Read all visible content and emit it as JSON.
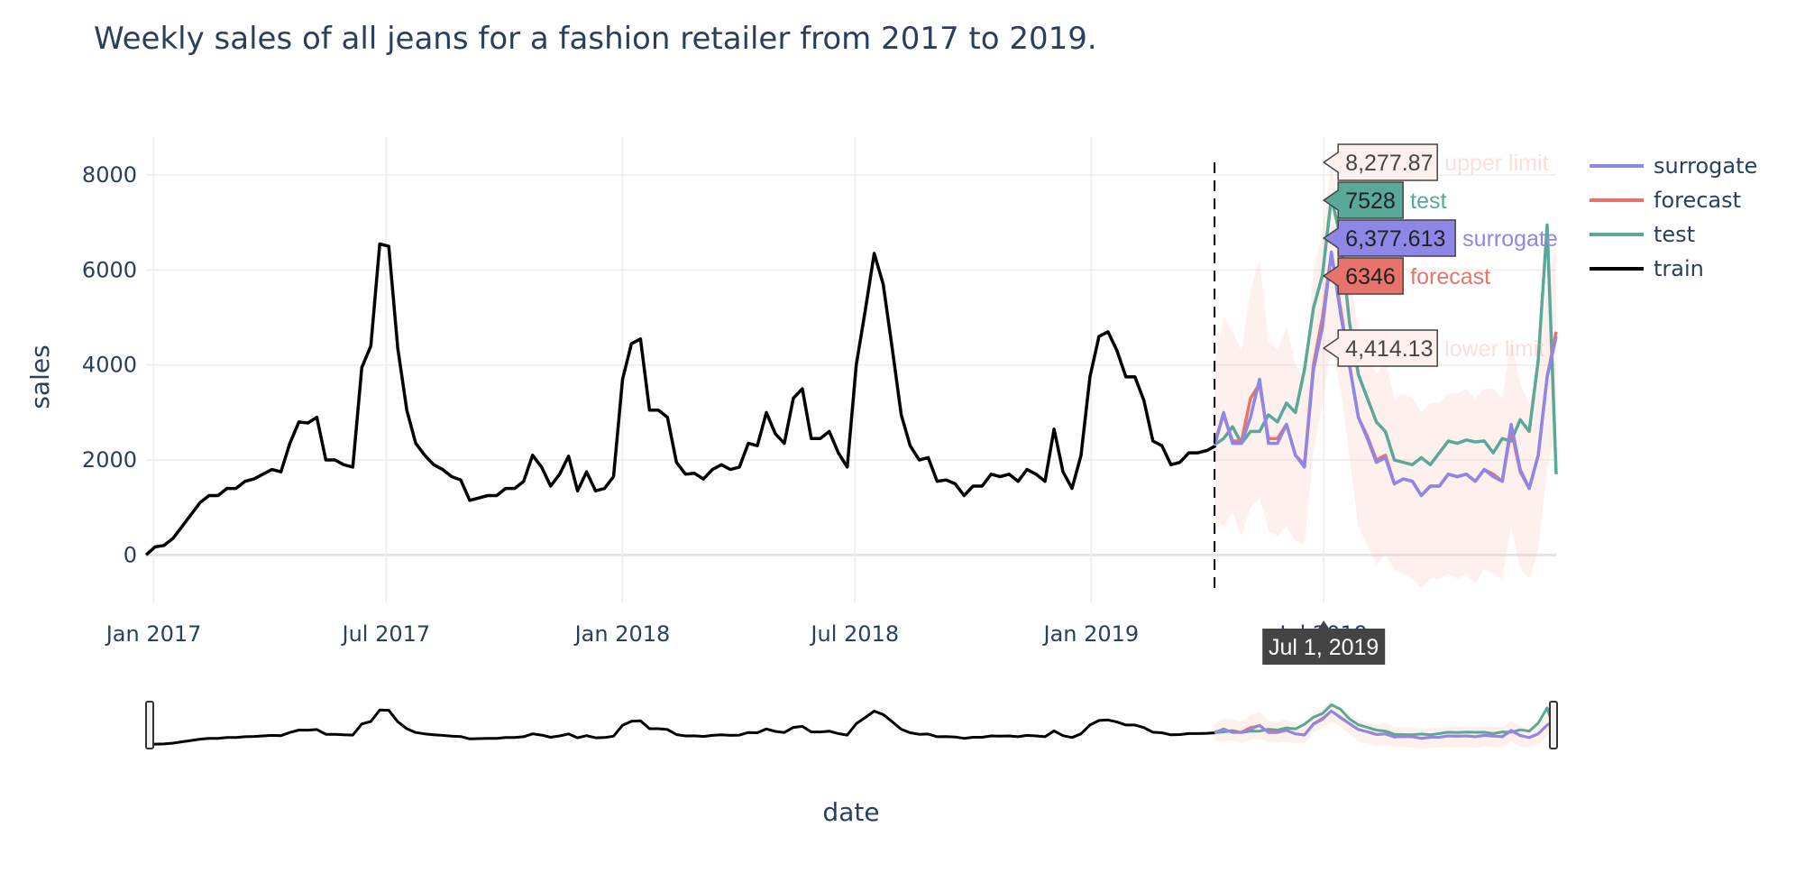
{
  "chart_data": {
    "type": "line",
    "title": "Weekly sales of all jeans for a fashion retailer from 2017 to 2019.",
    "xlabel": "date",
    "ylabel": "sales",
    "ylim": [
      -1000,
      8800
    ],
    "grid": true,
    "legend_placement": "top-right",
    "y_ticks": [
      0,
      2000,
      4000,
      6000,
      8000
    ],
    "y_tick_labels": [
      "0",
      "2000",
      "4000",
      "6000",
      "8000"
    ],
    "x_ticks": [
      "2017-01-01",
      "2017-07-01",
      "2018-01-01",
      "2018-07-01",
      "2019-01-01",
      "2019-07-01"
    ],
    "x_tick_labels": [
      "Jan 2017",
      "Jul 2017",
      "Jan 2018",
      "Jul 2018",
      "Jan 2019",
      "Jul 2019"
    ],
    "train_end_marker": "2019-04-07",
    "x_range": [
      "2016-12-26",
      "2019-12-29"
    ],
    "legend": [
      {
        "name": "surrogate",
        "color": "#8e87e8"
      },
      {
        "name": "forecast",
        "color": "#e8736a"
      },
      {
        "name": "test",
        "color": "#5aa898"
      },
      {
        "name": "train",
        "color": "#000000"
      }
    ],
    "hover": {
      "x_label": "Jul 1, 2019",
      "upper_limit": {
        "value": "8,277.87",
        "name": "upper limit"
      },
      "test": {
        "value": "7528",
        "name": "test"
      },
      "surrogate": {
        "value": "6,377.613",
        "name": "surrogate"
      },
      "forecast": {
        "value": "6346",
        "name": "forecast"
      },
      "lower_limit": {
        "value": "4,414.13",
        "name": "lower limit"
      }
    },
    "train": {
      "name": "train",
      "color": "#000000",
      "start": "2016-12-26",
      "step_days": 7,
      "values": [
        0,
        170,
        200,
        350,
        600,
        850,
        1100,
        1250,
        1250,
        1400,
        1400,
        1550,
        1600,
        1700,
        1800,
        1750,
        2350,
        2800,
        2780,
        2900,
        2000,
        2000,
        1900,
        1850,
        3950,
        4400,
        6550,
        6500,
        4350,
        3050,
        2350,
        2100,
        1900,
        1800,
        1650,
        1580,
        1150,
        1200,
        1250,
        1250,
        1400,
        1400,
        1550,
        2100,
        1850,
        1450,
        1700,
        2080,
        1350,
        1750,
        1350,
        1400,
        1650,
        3700,
        4450,
        4550,
        3050,
        3050,
        2900,
        1950,
        1700,
        1720,
        1600,
        1800,
        1900,
        1800,
        1850,
        2350,
        2300,
        3000,
        2550,
        2350,
        3300,
        3500,
        2450,
        2450,
        2600,
        2150,
        1850,
        4000,
        5150,
        6350,
        5700,
        4350,
        2950,
        2300,
        2000,
        2050,
        1550,
        1580,
        1500,
        1250,
        1450,
        1450,
        1700,
        1650,
        1700,
        1550,
        1800,
        1700,
        1550,
        2650,
        1750,
        1400,
        2100,
        3750,
        4600,
        4700,
        4300,
        3750,
        3750,
        3250,
        2400,
        2300,
        1900,
        1950,
        2150,
        2150,
        2200,
        2300
      ]
    },
    "forecast_period": {
      "start": "2019-04-07",
      "step_days": 7,
      "test": {
        "name": "test",
        "color": "#5aa898",
        "values": [
          2320,
          2450,
          2700,
          2350,
          2600,
          2600,
          2950,
          2800,
          3200,
          3000,
          3900,
          5200,
          5900,
          7528,
          6700,
          4900,
          3800,
          3300,
          2800,
          2600,
          2000,
          1950,
          1900,
          2050,
          1900,
          2150,
          2400,
          2350,
          2420,
          2380,
          2400,
          2150,
          2450,
          2400,
          2850,
          2600,
          4100,
          6950,
          1700
        ]
      },
      "forecast": {
        "name": "forecast",
        "color": "#e8736a",
        "values": [
          2360,
          2950,
          2400,
          2400,
          3300,
          3600,
          2450,
          2450,
          2750,
          2100,
          1900,
          4000,
          5000,
          6346,
          5200,
          4000,
          2900,
          2500,
          2000,
          2100,
          1500,
          1600,
          1550,
          1250,
          1450,
          1450,
          1700,
          1650,
          1700,
          1550,
          1800,
          1700,
          1550,
          2650,
          1750,
          1400,
          2100,
          3750,
          4700
        ]
      },
      "surrogate": {
        "name": "surrogate",
        "color": "#8e87e8",
        "values": [
          2300,
          3000,
          2350,
          2350,
          2900,
          3700,
          2350,
          2350,
          2750,
          2100,
          1850,
          3900,
          4800,
          6377.613,
          5100,
          4000,
          2900,
          2450,
          1950,
          2050,
          1500,
          1600,
          1550,
          1250,
          1450,
          1450,
          1700,
          1650,
          1700,
          1550,
          1800,
          1650,
          1550,
          2750,
          1800,
          1400,
          2100,
          3750,
          4600
        ]
      },
      "lower_limit": {
        "name": "lower limit",
        "values": [
          800,
          600,
          900,
          400,
          1000,
          1200,
          500,
          400,
          600,
          300,
          200,
          2200,
          3200,
          4414.13,
          3500,
          2100,
          600,
          200,
          -200,
          0,
          -300,
          -400,
          -500,
          -700,
          -500,
          -500,
          -400,
          -500,
          -400,
          -600,
          -300,
          -400,
          -500,
          600,
          -300,
          -500,
          100,
          1800,
          2700
        ]
      },
      "upper_limit": {
        "name": "upper limit",
        "values": [
          4000,
          5000,
          4700,
          4300,
          5600,
          6200,
          4500,
          4300,
          4800,
          4000,
          3700,
          6000,
          6800,
          8277.87,
          7000,
          5800,
          4800,
          4300,
          3800,
          4100,
          3300,
          3400,
          3300,
          3000,
          3200,
          3200,
          3400,
          3400,
          3500,
          3300,
          3500,
          3500,
          3300,
          4500,
          3600,
          3200,
          3900,
          5700,
          6600
        ]
      }
    }
  }
}
